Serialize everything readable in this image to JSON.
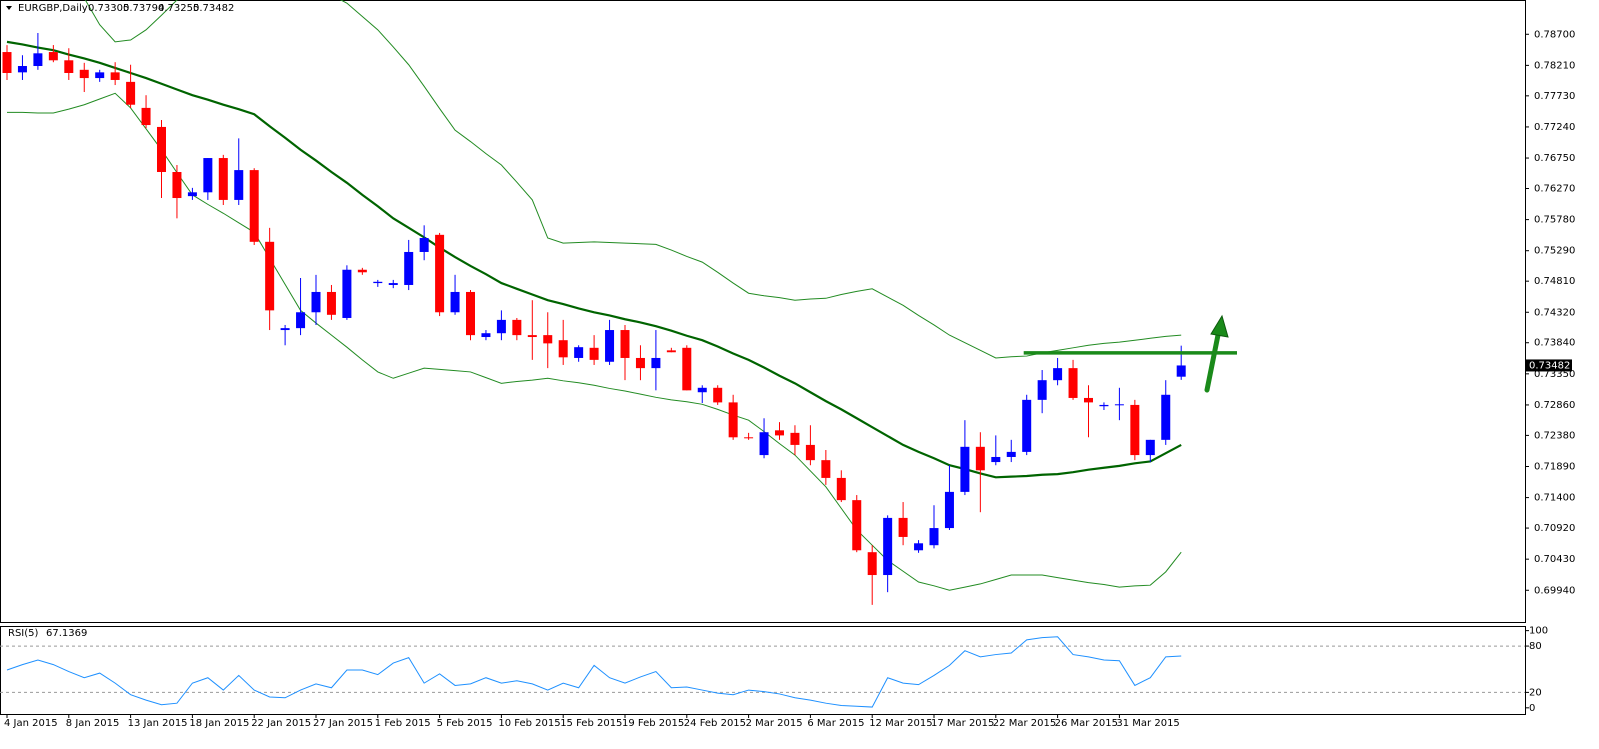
{
  "chart_data": [
    {
      "type": "candlestick",
      "symbol": "EURGBP,Daily",
      "up_color": "#0000ff",
      "down_color": "#ff0000",
      "band_color": "#228b22",
      "middle_color": "#006400",
      "resistance": 0.7368,
      "resistance_color": "#1a8a1a",
      "categories": [
        "4 Jan 2015",
        null,
        null,
        null,
        "8 Jan 2015",
        null,
        null,
        null,
        "13 Jan 2015",
        null,
        null,
        null,
        "18 Jan 2015",
        null,
        null,
        null,
        "22 Jan 2015",
        null,
        null,
        null,
        "27 Jan 2015",
        null,
        null,
        null,
        "1 Feb 2015",
        null,
        null,
        null,
        "5 Feb 2015",
        null,
        null,
        null,
        "10 Feb 2015",
        null,
        null,
        null,
        "15 Feb 2015",
        null,
        null,
        null,
        "19 Feb 2015",
        null,
        null,
        null,
        "24 Feb 2015",
        null,
        null,
        null,
        "2 Mar 2015",
        null,
        null,
        null,
        "6 Mar 2015",
        null,
        null,
        null,
        "12 Mar 2015",
        null,
        null,
        null,
        "17 Mar 2015",
        null,
        null,
        null,
        "22 Mar 2015",
        null,
        null,
        null,
        "26 Mar 2015",
        null,
        null,
        null,
        "31 Mar 2015",
        null,
        null,
        null,
        null
      ],
      "open": [
        0.7842,
        0.781,
        0.782,
        0.7842,
        0.7829,
        0.7814,
        0.7801,
        0.781,
        0.7795,
        0.7754,
        0.7724,
        0.7653,
        0.7615,
        0.7621,
        0.7675,
        0.7609,
        0.7656,
        0.7543,
        0.7404,
        0.7407,
        0.7432,
        0.7464,
        0.7423,
        0.7499,
        0.7478,
        0.7475,
        0.7475,
        0.7527,
        0.7554,
        0.7432,
        0.7464,
        0.7393,
        0.7399,
        0.742,
        0.7396,
        0.7396,
        0.7388,
        0.736,
        0.7376,
        0.7354,
        0.7404,
        0.736,
        0.7344,
        0.7372,
        0.7376,
        0.7306,
        0.7313,
        0.729,
        0.7235,
        0.7207,
        0.7246,
        0.7242,
        0.7223,
        0.7199,
        0.7171,
        0.7136,
        0.7054,
        0.7018,
        0.7108,
        0.7057,
        0.7065,
        0.7092,
        0.7149,
        0.722,
        0.7196,
        0.7204,
        0.7212,
        0.7294,
        0.7325,
        0.7344,
        0.7297,
        0.7284,
        0.7286,
        0.7286,
        0.7207,
        0.7231,
        0.73305
      ],
      "high": [
        0.7853,
        0.7837,
        0.7872,
        0.7853,
        0.7848,
        0.7825,
        0.7814,
        0.7826,
        0.7822,
        0.7774,
        0.7735,
        0.7664,
        0.7628,
        0.7675,
        0.768,
        0.7706,
        0.7659,
        0.7565,
        0.7412,
        0.7486,
        0.7491,
        0.7475,
        0.7506,
        0.7502,
        0.7483,
        0.7483,
        0.7546,
        0.7569,
        0.7557,
        0.7491,
        0.7467,
        0.7404,
        0.7435,
        0.7423,
        0.7451,
        0.7432,
        0.742,
        0.738,
        0.7396,
        0.742,
        0.7412,
        0.738,
        0.7404,
        0.7376,
        0.738,
        0.7317,
        0.7317,
        0.7302,
        0.7242,
        0.7265,
        0.7259,
        0.7254,
        0.7254,
        0.7215,
        0.7183,
        0.7144,
        0.7065,
        0.7112,
        0.7133,
        0.7073,
        0.7128,
        0.7191,
        0.7262,
        0.7243,
        0.7238,
        0.7231,
        0.7302,
        0.7341,
        0.736,
        0.7357,
        0.7317,
        0.729,
        0.7313,
        0.7294,
        0.7231,
        0.7325,
        0.73794
      ],
      "low": [
        0.7798,
        0.7798,
        0.7814,
        0.7826,
        0.7798,
        0.7779,
        0.7795,
        0.779,
        0.7754,
        0.7722,
        0.7612,
        0.758,
        0.7609,
        0.7609,
        0.7601,
        0.7601,
        0.7538,
        0.7404,
        0.738,
        0.7396,
        0.7412,
        0.742,
        0.742,
        0.7491,
        0.7472,
        0.747,
        0.7467,
        0.7514,
        0.7426,
        0.7428,
        0.7388,
        0.7388,
        0.7388,
        0.7388,
        0.7357,
        0.7344,
        0.7349,
        0.7354,
        0.7349,
        0.7349,
        0.7325,
        0.7325,
        0.7309,
        0.7369,
        0.7309,
        0.7289,
        0.7286,
        0.7231,
        0.7231,
        0.7202,
        0.7231,
        0.7207,
        0.7191,
        0.716,
        0.7133,
        0.7054,
        0.6971,
        0.6991,
        0.7065,
        0.7053,
        0.706,
        0.7089,
        0.7144,
        0.7117,
        0.7191,
        0.7196,
        0.7207,
        0.7273,
        0.7317,
        0.7294,
        0.7235,
        0.7278,
        0.7262,
        0.7199,
        0.7196,
        0.7223,
        0.73255
      ],
      "close": [
        0.7809,
        0.782,
        0.784,
        0.7829,
        0.7809,
        0.7801,
        0.781,
        0.7798,
        0.7759,
        0.7727,
        0.7653,
        0.7612,
        0.7621,
        0.7675,
        0.7609,
        0.7656,
        0.7543,
        0.7435,
        0.7407,
        0.7432,
        0.7464,
        0.7428,
        0.7499,
        0.7495,
        0.748,
        0.7478,
        0.7527,
        0.7549,
        0.7432,
        0.7464,
        0.7396,
        0.7399,
        0.742,
        0.7396,
        0.7393,
        0.7383,
        0.7361,
        0.7377,
        0.7357,
        0.7404,
        0.736,
        0.7344,
        0.736,
        0.7369,
        0.7309,
        0.7313,
        0.729,
        0.7235,
        0.7234,
        0.7243,
        0.7238,
        0.7223,
        0.7199,
        0.7171,
        0.7136,
        0.7057,
        0.7018,
        0.7108,
        0.7078,
        0.7068,
        0.7092,
        0.7149,
        0.722,
        0.7183,
        0.7204,
        0.7212,
        0.7294,
        0.7325,
        0.7344,
        0.7297,
        0.729,
        0.7286,
        0.7287,
        0.7207,
        0.7231,
        0.7302,
        0.73482
      ],
      "bands": {
        "middle": [
          0.7858,
          0.7854,
          0.7849,
          0.7845,
          0.7838,
          0.7832,
          0.7825,
          0.7817,
          0.7809,
          0.7801,
          0.7792,
          0.7783,
          0.7774,
          0.7767,
          0.7759,
          0.7752,
          0.7744,
          0.7725,
          0.7707,
          0.7688,
          0.7671,
          0.7653,
          0.7636,
          0.7617,
          0.7599,
          0.758,
          0.7565,
          0.755,
          0.7534,
          0.7519,
          0.7505,
          0.7492,
          0.7478,
          0.7469,
          0.746,
          0.7451,
          0.7445,
          0.7438,
          0.7432,
          0.7427,
          0.7421,
          0.7416,
          0.741,
          0.7403,
          0.7395,
          0.7388,
          0.7378,
          0.7367,
          0.7357,
          0.7345,
          0.7332,
          0.732,
          0.7306,
          0.7292,
          0.7279,
          0.7265,
          0.7251,
          0.7237,
          0.7223,
          0.7212,
          0.7202,
          0.7191,
          0.7185,
          0.7178,
          0.7172,
          0.7173,
          0.7174,
          0.7176,
          0.7177,
          0.718,
          0.7184,
          0.7187,
          0.719,
          0.7194,
          0.7197,
          0.721,
          0.7223
        ],
        "upper": [
          0.7971,
          0.7966,
          0.7961,
          0.7956,
          0.7942,
          0.7927,
          0.7885,
          0.7858,
          0.7861,
          0.7877,
          0.79,
          0.7924,
          0.7932,
          0.7936,
          0.794,
          0.7944,
          0.7948,
          0.7946,
          0.7945,
          0.7943,
          0.7938,
          0.7932,
          0.7919,
          0.7898,
          0.7877,
          0.785,
          0.7822,
          0.7788,
          0.7753,
          0.7719,
          0.7701,
          0.7682,
          0.7664,
          0.7637,
          0.7609,
          0.7549,
          0.7541,
          0.7542,
          0.7543,
          0.7542,
          0.7541,
          0.754,
          0.7539,
          0.753,
          0.752,
          0.7511,
          0.7495,
          0.7478,
          0.7462,
          0.7458,
          0.7455,
          0.7451,
          0.7453,
          0.7454,
          0.746,
          0.7465,
          0.7469,
          0.7456,
          0.7443,
          0.7427,
          0.7412,
          0.7396,
          0.7384,
          0.7372,
          0.736,
          0.7362,
          0.7363,
          0.7368,
          0.7372,
          0.7376,
          0.738,
          0.7383,
          0.7385,
          0.7388,
          0.7391,
          0.7394,
          0.7396
        ],
        "lower": [
          0.7747,
          0.7747,
          0.7746,
          0.7746,
          0.7752,
          0.7759,
          0.7768,
          0.7777,
          0.7754,
          0.7721,
          0.7688,
          0.7652,
          0.7617,
          0.7602,
          0.7588,
          0.7573,
          0.7558,
          0.7517,
          0.7476,
          0.7435,
          0.7415,
          0.7396,
          0.7377,
          0.7357,
          0.7338,
          0.7328,
          0.7336,
          0.7344,
          0.7342,
          0.734,
          0.7338,
          0.7329,
          0.732,
          0.7323,
          0.7325,
          0.7328,
          0.7324,
          0.7321,
          0.7317,
          0.7312,
          0.7308,
          0.7303,
          0.7298,
          0.7294,
          0.7291,
          0.7287,
          0.7279,
          0.727,
          0.7262,
          0.7244,
          0.7225,
          0.7207,
          0.7182,
          0.7157,
          0.7123,
          0.7089,
          0.7065,
          0.7041,
          0.7024,
          0.7007,
          0.7001,
          0.6994,
          0.6999,
          0.7004,
          0.7011,
          0.7018,
          0.7018,
          0.7018,
          0.7014,
          0.701,
          0.7006,
          0.7003,
          0.6999,
          0.7001,
          0.7002,
          0.7023,
          0.7054
        ]
      },
      "ylim": [
        0.6944,
        0.7924
      ],
      "yticks": [
        {
          "value": 0.787,
          "label": "0.78700"
        },
        {
          "value": 0.7821,
          "label": "0.78210"
        },
        {
          "value": 0.7773,
          "label": "0.77730"
        },
        {
          "value": 0.7724,
          "label": "0.77240"
        },
        {
          "value": 0.7675,
          "label": "0.76750"
        },
        {
          "value": 0.7627,
          "label": "0.76270"
        },
        {
          "value": 0.7578,
          "label": "0.75780"
        },
        {
          "value": 0.7529,
          "label": "0.75290"
        },
        {
          "value": 0.7481,
          "label": "0.74810"
        },
        {
          "value": 0.7432,
          "label": "0.74320"
        },
        {
          "value": 0.7384,
          "label": "0.73840"
        },
        {
          "value": 0.7335,
          "label": "0.73350"
        },
        {
          "value": 0.7286,
          "label": "0.72860"
        },
        {
          "value": 0.7238,
          "label": "0.72380"
        },
        {
          "value": 0.7189,
          "label": "0.71890"
        },
        {
          "value": 0.714,
          "label": "0.71400"
        },
        {
          "value": 0.7092,
          "label": "0.70920"
        },
        {
          "value": 0.7043,
          "label": "0.70430"
        },
        {
          "value": 0.6994,
          "label": "0.69940"
        }
      ]
    },
    {
      "type": "line",
      "label": "RSI(5)",
      "color": "#1e90ff",
      "levels": [
        20,
        80
      ],
      "values": [
        49,
        56,
        62,
        56,
        47,
        39,
        45,
        32,
        17,
        10,
        4,
        6,
        32,
        39,
        23,
        42,
        23,
        14,
        13,
        23,
        31,
        26,
        49,
        49,
        43,
        58,
        65,
        32,
        44,
        29,
        31,
        39,
        32,
        35,
        31,
        23,
        32,
        26,
        55,
        39,
        32,
        40,
        47,
        26,
        27,
        23,
        19,
        17,
        23,
        21,
        18,
        13,
        10,
        6,
        3,
        2,
        1,
        39,
        32,
        30,
        42,
        55,
        74,
        66,
        69,
        71,
        88,
        91,
        92,
        69,
        66,
        62,
        61,
        29,
        39,
        66,
        67.1369
      ],
      "ylim": [
        -8,
        106
      ],
      "yticks": [
        0,
        20,
        80,
        100
      ]
    }
  ]
}
